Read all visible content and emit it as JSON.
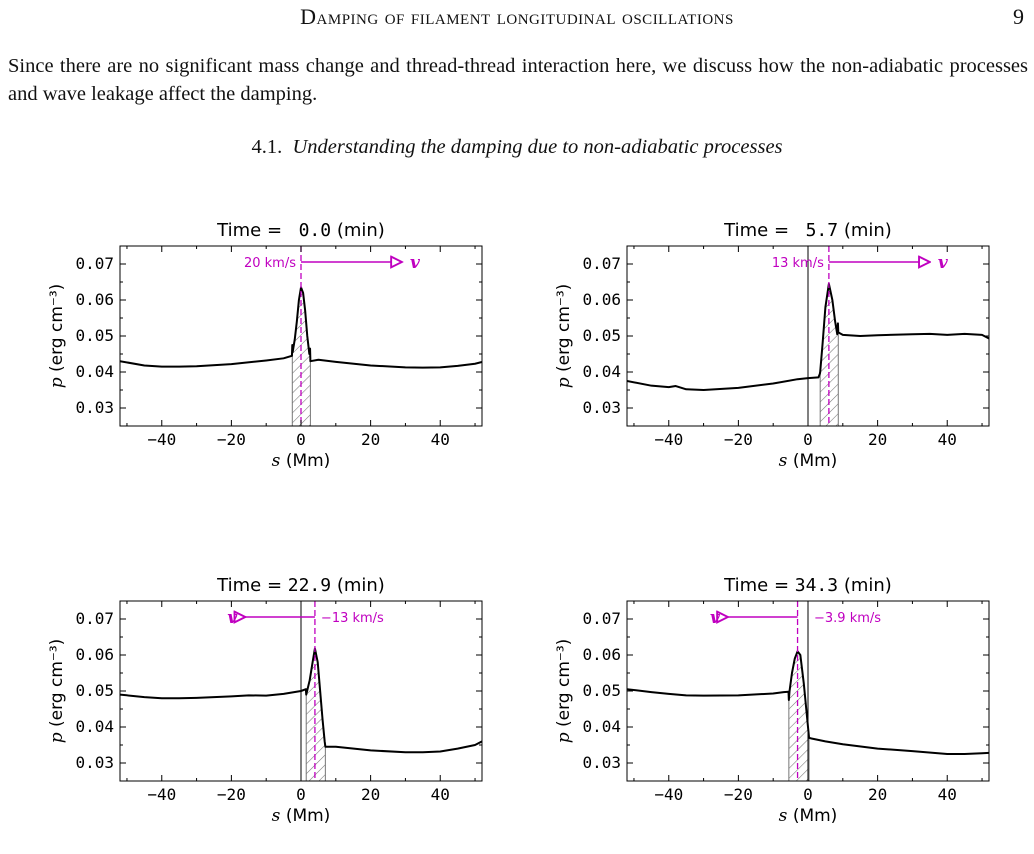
{
  "header": {
    "running_title": "Damping of filament longitudinal oscillations",
    "page_number": "9"
  },
  "body": {
    "paragraph": "Since there are no significant mass change and thread-thread interaction here, we discuss how the non-adiabatic processes and wave leakage affect the damping."
  },
  "section": {
    "number": "4.1.",
    "title": "Understanding the damping due to non-adiabatic processes"
  },
  "colors": {
    "velocity": "#c000c0",
    "curve": "#000000",
    "hatch": "#777777"
  },
  "chart_data": [
    {
      "type": "line",
      "title_prefix": "Time =",
      "title_value": "0.0",
      "title_unit": "(min)",
      "xlabel_var": "s",
      "xlabel_unit": "(Mm)",
      "ylabel_var": "p",
      "ylabel_unit": "(erg cm⁻³)",
      "xlim": [
        -52,
        52
      ],
      "ylim": [
        0.025,
        0.075
      ],
      "xticks": [
        -40,
        -20,
        0,
        20,
        40
      ],
      "yticks": [
        0.03,
        0.04,
        0.05,
        0.06,
        0.07
      ],
      "ytick_labels": [
        "0.03",
        "0.04",
        "0.05",
        "0.06",
        "0.07"
      ],
      "velocity_label": "20 km/s",
      "velocity_symbol": "v",
      "velocity_direction": "right",
      "center_line": null,
      "thread_center": 0,
      "thread_range": [
        -2.5,
        2.7
      ],
      "x": [
        -52,
        -45,
        -40,
        -35,
        -30,
        -20,
        -10,
        -5,
        -2.6,
        -2.5,
        -2.4,
        -1.8,
        -1.2,
        -0.6,
        0,
        0.6,
        1.2,
        1.8,
        2.4,
        2.6,
        2.7,
        5,
        10,
        20,
        30,
        35,
        40,
        45,
        50,
        52
      ],
      "y": [
        0.043,
        0.0418,
        0.0415,
        0.0415,
        0.0416,
        0.0422,
        0.0432,
        0.0438,
        0.0445,
        0.0475,
        0.0455,
        0.049,
        0.054,
        0.06,
        0.0635,
        0.062,
        0.057,
        0.05,
        0.045,
        0.0465,
        0.043,
        0.0434,
        0.0428,
        0.0418,
        0.0413,
        0.0412,
        0.0413,
        0.0417,
        0.0423,
        0.0428
      ]
    },
    {
      "type": "line",
      "title_prefix": "Time =",
      "title_value": "5.7",
      "title_unit": "(min)",
      "xlabel_var": "s",
      "xlabel_unit": "(Mm)",
      "ylabel_var": "p",
      "ylabel_unit": "(erg cm⁻³)",
      "xlim": [
        -52,
        52
      ],
      "ylim": [
        0.025,
        0.075
      ],
      "xticks": [
        -40,
        -20,
        0,
        20,
        40
      ],
      "yticks": [
        0.03,
        0.04,
        0.05,
        0.06,
        0.07
      ],
      "ytick_labels": [
        "0.03",
        "0.04",
        "0.05",
        "0.06",
        "0.07"
      ],
      "velocity_label": "13 km/s",
      "velocity_symbol": "v",
      "velocity_direction": "right",
      "center_line": 0,
      "thread_center": 6,
      "thread_range": [
        3.5,
        8.7
      ],
      "x": [
        -52,
        -45,
        -40,
        -38,
        -35,
        -30,
        -20,
        -10,
        -3,
        0,
        3,
        3.4,
        3.5,
        4.2,
        5,
        6,
        7,
        7.8,
        8.4,
        8.6,
        8.7,
        10,
        15,
        20,
        30,
        35,
        40,
        45,
        50,
        52
      ],
      "y": [
        0.0375,
        0.0362,
        0.0358,
        0.0361,
        0.0352,
        0.035,
        0.0356,
        0.0368,
        0.038,
        0.0383,
        0.0385,
        0.0395,
        0.04,
        0.048,
        0.058,
        0.0645,
        0.06,
        0.054,
        0.0505,
        0.0535,
        0.051,
        0.0503,
        0.05,
        0.0502,
        0.0505,
        0.0506,
        0.0503,
        0.0506,
        0.0503,
        0.0493
      ]
    },
    {
      "type": "line",
      "title_prefix": "Time =",
      "title_value": "22.9",
      "title_unit": "(min)",
      "xlabel_var": "s",
      "xlabel_unit": "(Mm)",
      "ylabel_var": "p",
      "ylabel_unit": "(erg cm⁻³)",
      "xlim": [
        -52,
        52
      ],
      "ylim": [
        0.025,
        0.075
      ],
      "xticks": [
        -40,
        -20,
        0,
        20,
        40
      ],
      "yticks": [
        0.03,
        0.04,
        0.05,
        0.06,
        0.07
      ],
      "ytick_labels": [
        "0.03",
        "0.04",
        "0.05",
        "0.06",
        "0.07"
      ],
      "velocity_label": "−13 km/s",
      "velocity_symbol": "v",
      "velocity_direction": "left",
      "center_line": 0,
      "thread_center": 4,
      "thread_range": [
        1.5,
        7
      ],
      "x": [
        -52,
        -45,
        -40,
        -35,
        -30,
        -20,
        -15,
        -10,
        -5,
        0,
        1.4,
        1.5,
        2.5,
        3.5,
        4,
        4.8,
        5.5,
        6.2,
        6.8,
        7,
        10,
        20,
        30,
        35,
        40,
        45,
        50,
        52
      ],
      "y": [
        0.049,
        0.0483,
        0.048,
        0.048,
        0.0481,
        0.0485,
        0.0488,
        0.0487,
        0.0492,
        0.05,
        0.0505,
        0.049,
        0.053,
        0.059,
        0.0618,
        0.058,
        0.05,
        0.042,
        0.036,
        0.0345,
        0.0345,
        0.0335,
        0.033,
        0.033,
        0.0332,
        0.034,
        0.035,
        0.036
      ]
    },
    {
      "type": "line",
      "title_prefix": "Time =",
      "title_value": "34.3",
      "title_unit": "(min)",
      "xlabel_var": "s",
      "xlabel_unit": "(Mm)",
      "ylabel_var": "p",
      "ylabel_unit": "(erg cm⁻³)",
      "xlim": [
        -52,
        52
      ],
      "ylim": [
        0.025,
        0.075
      ],
      "xticks": [
        -40,
        -20,
        0,
        20,
        40
      ],
      "yticks": [
        0.03,
        0.04,
        0.05,
        0.06,
        0.07
      ],
      "ytick_labels": [
        "0.03",
        "0.04",
        "0.05",
        "0.06",
        "0.07"
      ],
      "velocity_label": "−3.9 km/s",
      "velocity_symbol": "v",
      "velocity_direction": "left",
      "center_line": 0,
      "thread_center": -3,
      "thread_range": [
        -5.5,
        0.3
      ],
      "x": [
        -52,
        -45,
        -40,
        -35,
        -30,
        -20,
        -10,
        -7,
        -5.6,
        -5.5,
        -5.3,
        -4.6,
        -3.8,
        -3,
        -2.2,
        -1.2,
        -0.3,
        0.2,
        0.3,
        1,
        5,
        10,
        20,
        30,
        40,
        45,
        50,
        52
      ],
      "y": [
        0.0505,
        0.0497,
        0.0492,
        0.0488,
        0.0487,
        0.0488,
        0.0493,
        0.0497,
        0.0498,
        0.0475,
        0.05,
        0.055,
        0.059,
        0.061,
        0.06,
        0.052,
        0.043,
        0.038,
        0.037,
        0.0368,
        0.036,
        0.0352,
        0.034,
        0.0333,
        0.0325,
        0.0325,
        0.0327,
        0.0328
      ]
    }
  ]
}
